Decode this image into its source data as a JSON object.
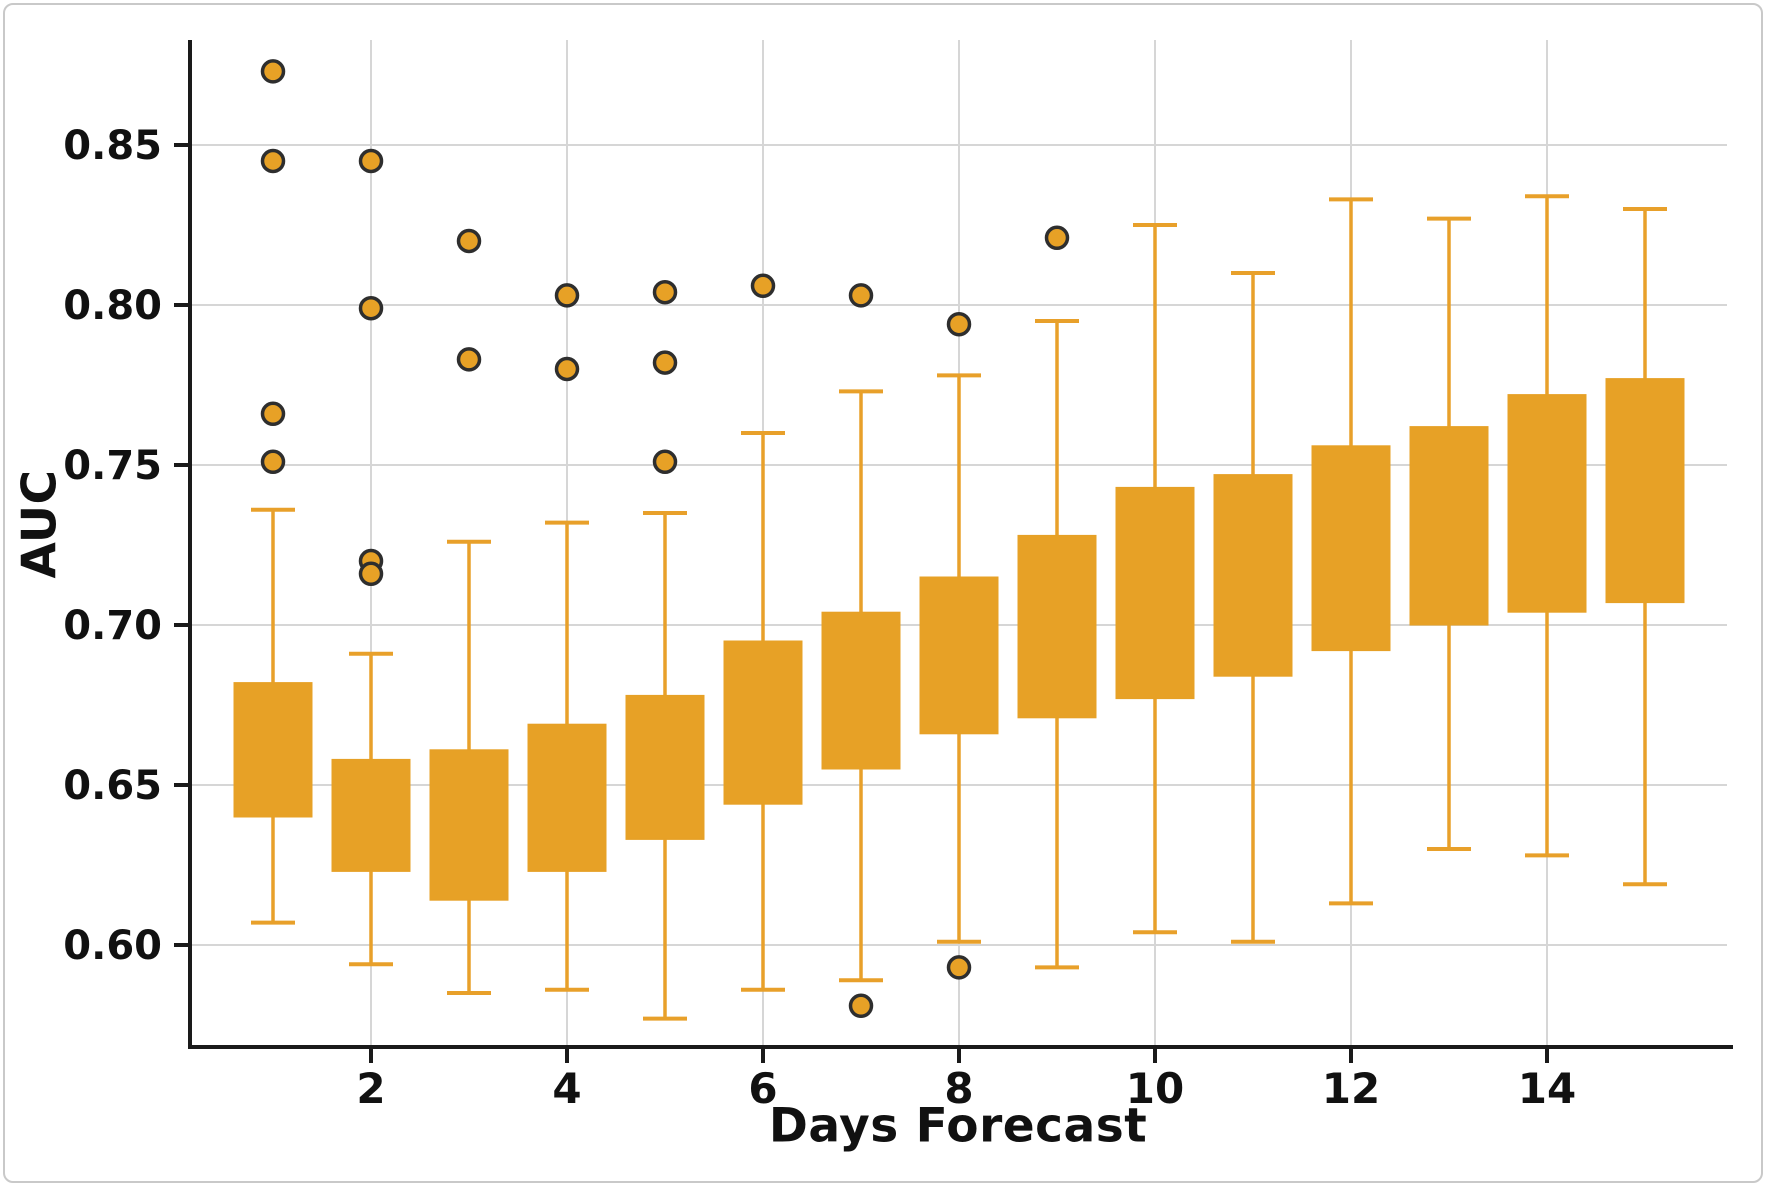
{
  "figure": {
    "background": "#ffffff",
    "frame_border_color": "#c9c9c9"
  },
  "chart_data": {
    "type": "box",
    "title": "",
    "xlabel": "Days Forecast",
    "ylabel": "AUC",
    "grid": true,
    "legend": "none",
    "x_ticks": [
      2,
      4,
      6,
      8,
      10,
      12,
      14
    ],
    "y_ticks": [
      0.6,
      0.65,
      0.7,
      0.75,
      0.8,
      0.85
    ],
    "y_tick_labels": [
      "0.60",
      "0.65",
      "0.70",
      "0.75",
      "0.80",
      "0.85"
    ],
    "xlim": [
      0.15,
      15.84
    ],
    "ylim": [
      0.568,
      0.883
    ],
    "categories": [
      1,
      2,
      3,
      4,
      5,
      6,
      7,
      8,
      9,
      10,
      11,
      12,
      13,
      14,
      15
    ],
    "boxes": [
      {
        "day": 1,
        "whisker_low": 0.607,
        "q1": 0.64,
        "q3": 0.682,
        "whisker_high": 0.736,
        "outliers": [
          0.873,
          0.845,
          0.766,
          0.751
        ]
      },
      {
        "day": 2,
        "whisker_low": 0.594,
        "q1": 0.623,
        "q3": 0.658,
        "whisker_high": 0.691,
        "outliers": [
          0.845,
          0.799,
          0.72,
          0.716
        ]
      },
      {
        "day": 3,
        "whisker_low": 0.585,
        "q1": 0.614,
        "q3": 0.661,
        "whisker_high": 0.726,
        "outliers": [
          0.82,
          0.783
        ]
      },
      {
        "day": 4,
        "whisker_low": 0.586,
        "q1": 0.623,
        "q3": 0.669,
        "whisker_high": 0.732,
        "outliers": [
          0.803,
          0.78
        ]
      },
      {
        "day": 5,
        "whisker_low": 0.577,
        "q1": 0.633,
        "q3": 0.678,
        "whisker_high": 0.735,
        "outliers": [
          0.804,
          0.782,
          0.751
        ]
      },
      {
        "day": 6,
        "whisker_low": 0.586,
        "q1": 0.644,
        "q3": 0.695,
        "whisker_high": 0.76,
        "outliers": [
          0.806
        ]
      },
      {
        "day": 7,
        "whisker_low": 0.589,
        "q1": 0.655,
        "q3": 0.704,
        "whisker_high": 0.773,
        "outliers": [
          0.803,
          0.581
        ]
      },
      {
        "day": 8,
        "whisker_low": 0.601,
        "q1": 0.666,
        "q3": 0.715,
        "whisker_high": 0.778,
        "outliers": [
          0.794,
          0.593
        ]
      },
      {
        "day": 9,
        "whisker_low": 0.593,
        "q1": 0.671,
        "q3": 0.728,
        "whisker_high": 0.795,
        "outliers": [
          0.821
        ]
      },
      {
        "day": 10,
        "whisker_low": 0.604,
        "q1": 0.677,
        "q3": 0.743,
        "whisker_high": 0.825,
        "outliers": []
      },
      {
        "day": 11,
        "whisker_low": 0.601,
        "q1": 0.684,
        "q3": 0.747,
        "whisker_high": 0.81,
        "outliers": []
      },
      {
        "day": 12,
        "whisker_low": 0.613,
        "q1": 0.692,
        "q3": 0.756,
        "whisker_high": 0.833,
        "outliers": []
      },
      {
        "day": 13,
        "whisker_low": 0.63,
        "q1": 0.7,
        "q3": 0.762,
        "whisker_high": 0.827,
        "outliers": []
      },
      {
        "day": 14,
        "whisker_low": 0.628,
        "q1": 0.704,
        "q3": 0.772,
        "whisker_high": 0.834,
        "outliers": []
      },
      {
        "day": 15,
        "whisker_low": 0.619,
        "q1": 0.707,
        "q3": 0.777,
        "whisker_high": 0.83,
        "outliers": []
      }
    ],
    "colors": {
      "box_fill": "#E7A126",
      "whisker": "#E8A02A",
      "outlier_fill": "#E7A126",
      "outlier_stroke": "#2e2e2e",
      "grid": "#d6d6d6",
      "axis": "#1a1a1a",
      "text": "#111111"
    }
  }
}
